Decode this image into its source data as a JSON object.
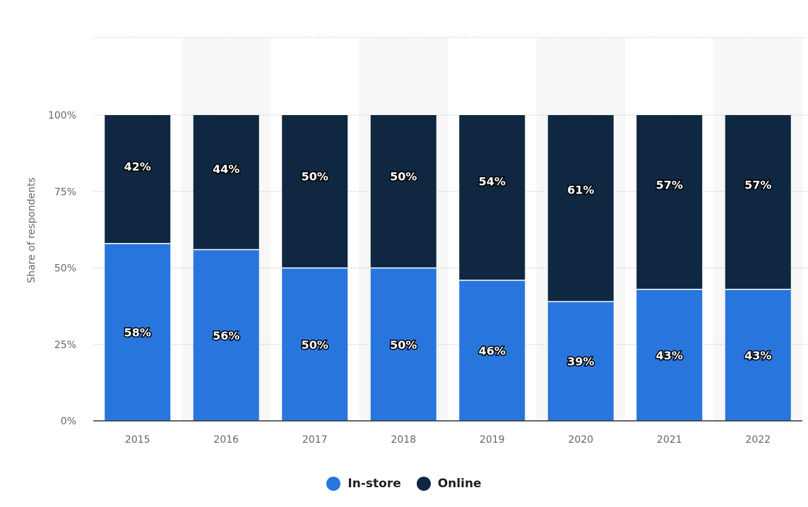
{
  "chart_data": {
    "type": "bar",
    "stacked": true,
    "categories": [
      "2015",
      "2016",
      "2017",
      "2018",
      "2019",
      "2020",
      "2021",
      "2022"
    ],
    "series": [
      {
        "name": "In-store",
        "values": [
          58,
          56,
          50,
          50,
          46,
          39,
          43,
          43
        ],
        "labels": [
          "58%",
          "56%",
          "50%",
          "50%",
          "46%",
          "39%",
          "43%",
          "43%"
        ],
        "color": "#2876dd"
      },
      {
        "name": "Online",
        "values": [
          42,
          44,
          50,
          50,
          54,
          61,
          57,
          57
        ],
        "labels": [
          "42%",
          "44%",
          "50%",
          "50%",
          "54%",
          "61%",
          "57%",
          "57%"
        ],
        "color": "#0f2740"
      }
    ],
    "ylabel": "Share of respondents",
    "ylim": [
      0,
      100
    ],
    "yticks": [
      "0%",
      "25%",
      "50%",
      "75%",
      "100%"
    ],
    "ytick_values": [
      0,
      25,
      50,
      75,
      100
    ],
    "grid": true,
    "legend_position": "bottom"
  },
  "legend": {
    "items": [
      {
        "label": "In-store",
        "color": "#2876dd"
      },
      {
        "label": "Online",
        "color": "#0f2740"
      }
    ]
  }
}
